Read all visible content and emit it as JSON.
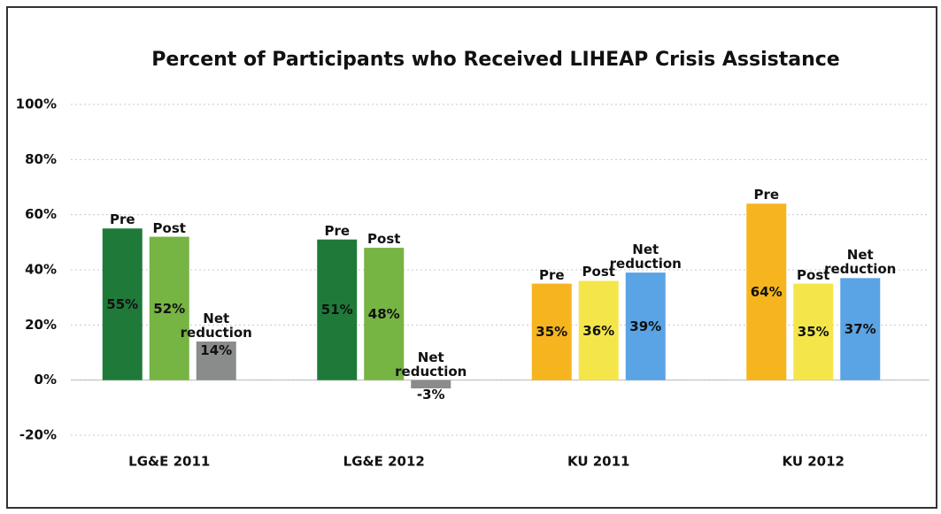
{
  "chart_data": {
    "type": "bar",
    "title": "Percent of Participants who Received LIHEAP Crisis Assistance",
    "categories": [
      "LG&E 2011",
      "LG&E 2012",
      "KU 2011",
      "KU 2012"
    ],
    "series": [
      {
        "name": "Pre",
        "colors": [
          "#1f7a3a",
          "#1f7a3a",
          "#f6b51e",
          "#f6b51e"
        ],
        "values": [
          55,
          51,
          35,
          64
        ],
        "value_labels": [
          "55%",
          "51%",
          "35%",
          "64%"
        ]
      },
      {
        "name": "Post",
        "colors": [
          "#76b443",
          "#76b443",
          "#f4e64a",
          "#f4e64a"
        ],
        "values": [
          52,
          48,
          36,
          35
        ],
        "value_labels": [
          "52%",
          "48%",
          "36%",
          "35%"
        ]
      },
      {
        "name": "Net reduction",
        "colors": [
          "#8a8c8c",
          "#8a8c8c",
          "#5aa3e4",
          "#5aa3e4"
        ],
        "values": [
          14,
          -3,
          39,
          37
        ],
        "value_labels": [
          "14%",
          "-3%",
          "39%",
          "37%"
        ]
      }
    ],
    "ylim": [
      -20,
      100
    ],
    "yticks": [
      {
        "value": -20,
        "label": "-20%"
      },
      {
        "value": 0,
        "label": "0%"
      },
      {
        "value": 20,
        "label": "20%"
      },
      {
        "value": 40,
        "label": "40%"
      },
      {
        "value": 60,
        "label": "60%"
      },
      {
        "value": 80,
        "label": "80%"
      },
      {
        "value": 100,
        "label": "100%"
      }
    ],
    "grid": true
  }
}
